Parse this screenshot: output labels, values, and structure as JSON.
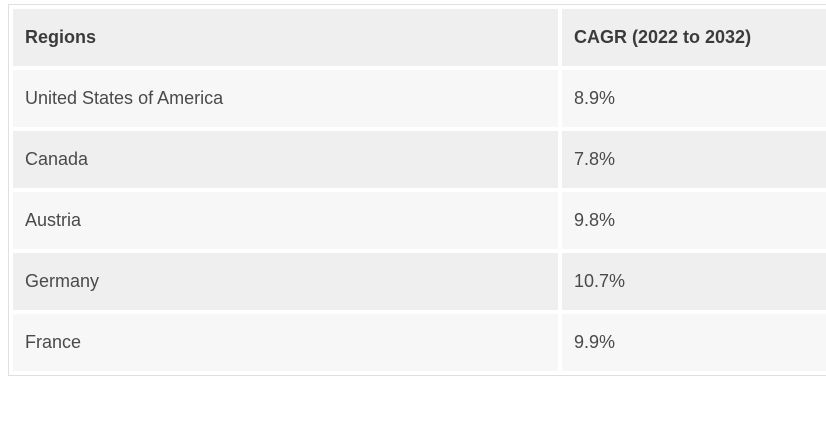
{
  "chart_data": {
    "type": "table",
    "title": "",
    "columns": [
      "Regions",
      "CAGR (2022 to 2032)"
    ],
    "rows": [
      [
        "United States of America",
        "8.9%"
      ],
      [
        "Canada",
        "7.8%"
      ],
      [
        "Austria",
        "9.8%"
      ],
      [
        "Germany",
        "10.7%"
      ],
      [
        "France",
        "9.9%"
      ]
    ],
    "numeric_values_percent": {
      "United States of America": 8.9,
      "Canada": 7.8,
      "Austria": 9.8,
      "Germany": 10.7,
      "France": 9.9
    }
  },
  "colors": {
    "header_row_bg": "#efefef",
    "row_stripe_dark": "#efefef",
    "row_stripe_light": "#f7f7f7",
    "cell_gap": "#ffffff",
    "table_border": "#e0e0e0",
    "header_text": "#3b3b3b",
    "body_text": "#4a4a4a",
    "page_bg": "#ffffff"
  }
}
